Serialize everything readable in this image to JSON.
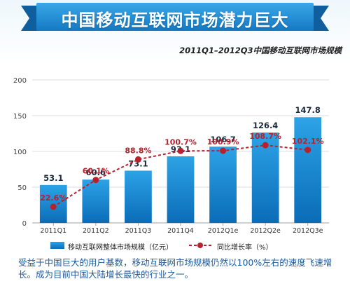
{
  "banner_title": "中国移动互联网市场潜力巨大",
  "subtitle": "2011Q1–2012Q3中国移动互联网市场规模",
  "footnote": "受益于中国巨大的用户基数，移动互联网市场规模仍然以100%左右的速度飞速增长。成为目前中国大陆增长最快的行业之一。",
  "colors": {
    "banner": "#1c8fd6",
    "bar_top": "#2da3e6",
    "bar_bottom": "#0a6cb8",
    "line": "#b8202d",
    "label_bar": "#1a2a3a",
    "label_line": "#b8202d"
  },
  "chart_data": {
    "type": "bar",
    "categories": [
      "2011Q1",
      "2011Q2",
      "2011Q3",
      "2011Q4",
      "2012Q1e",
      "2012Q2e",
      "2012Q3e"
    ],
    "yticks": [
      "0",
      "50",
      "100",
      "150",
      "200"
    ],
    "ylim": [
      0,
      200
    ],
    "grid": true,
    "legend_position": "bottom",
    "series": [
      {
        "name": "移动互联网整体市场规模（亿元）",
        "kind": "bar",
        "values": [
          53.1,
          60.6,
          73.1,
          93.1,
          106.7,
          126.4,
          147.8
        ],
        "labels": [
          "53.1",
          "60.6",
          "73.1",
          "93.1",
          "106.7",
          "126.4",
          "147.8"
        ]
      },
      {
        "name": "同比增长率（%）",
        "kind": "line",
        "values": [
          22.6,
          60.1,
          88.8,
          100.7,
          100.9,
          108.7,
          102.1
        ],
        "labels": [
          "22.6%",
          "60.1%",
          "88.8%",
          "100.7%",
          "100.9%",
          "108.7%",
          "102.1%"
        ]
      }
    ]
  }
}
